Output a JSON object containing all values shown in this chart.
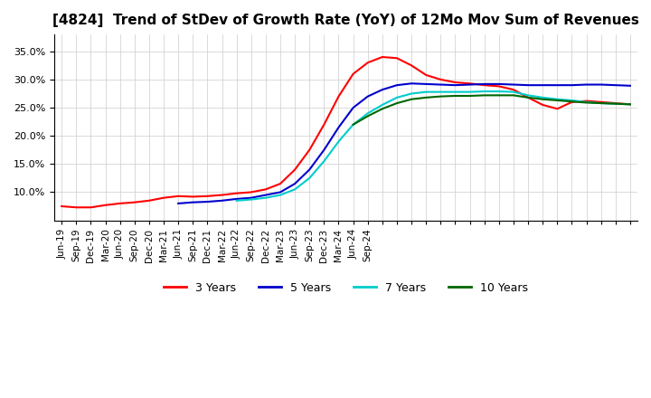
{
  "title": "[4824]  Trend of StDev of Growth Rate (YoY) of 12Mo Mov Sum of Revenues",
  "title_fontsize": 11,
  "ylim": [
    0.05,
    0.38
  ],
  "yticks": [
    0.1,
    0.15,
    0.2,
    0.25,
    0.3,
    0.35
  ],
  "background_color": "#ffffff",
  "grid_color": "#cccccc",
  "legend_labels": [
    "3 Years",
    "5 Years",
    "7 Years",
    "10 Years"
  ],
  "legend_colors": [
    "#ff0000",
    "#0000cc",
    "#00cccc",
    "#006600"
  ],
  "series": {
    "3yr": {
      "color": "#ff0000",
      "points": [
        [
          0,
          0.075
        ],
        [
          1,
          0.073
        ],
        [
          2,
          0.073
        ],
        [
          3,
          0.077
        ],
        [
          4,
          0.08
        ],
        [
          5,
          0.082
        ],
        [
          6,
          0.085
        ],
        [
          7,
          0.09
        ],
        [
          8,
          0.093
        ],
        [
          9,
          0.092
        ],
        [
          10,
          0.093
        ],
        [
          11,
          0.095
        ],
        [
          12,
          0.098
        ],
        [
          13,
          0.1
        ],
        [
          14,
          0.105
        ],
        [
          15,
          0.115
        ],
        [
          16,
          0.14
        ],
        [
          17,
          0.175
        ],
        [
          18,
          0.22
        ],
        [
          19,
          0.27
        ],
        [
          20,
          0.31
        ],
        [
          21,
          0.33
        ],
        [
          22,
          0.34
        ],
        [
          23,
          0.338
        ],
        [
          24,
          0.325
        ],
        [
          25,
          0.308
        ],
        [
          26,
          0.3
        ],
        [
          27,
          0.295
        ],
        [
          28,
          0.293
        ],
        [
          29,
          0.29
        ],
        [
          30,
          0.288
        ],
        [
          31,
          0.282
        ],
        [
          32,
          0.268
        ],
        [
          33,
          0.255
        ],
        [
          34,
          0.248
        ],
        [
          35,
          0.26
        ],
        [
          36,
          0.262
        ],
        [
          37,
          0.26
        ],
        [
          38,
          0.258
        ],
        [
          39,
          0.256
        ]
      ]
    },
    "5yr": {
      "color": "#0000cc",
      "points": [
        [
          8,
          0.08
        ],
        [
          9,
          0.082
        ],
        [
          10,
          0.083
        ],
        [
          11,
          0.085
        ],
        [
          12,
          0.088
        ],
        [
          13,
          0.09
        ],
        [
          14,
          0.095
        ],
        [
          15,
          0.1
        ],
        [
          16,
          0.115
        ],
        [
          17,
          0.14
        ],
        [
          18,
          0.175
        ],
        [
          19,
          0.215
        ],
        [
          20,
          0.25
        ],
        [
          21,
          0.27
        ],
        [
          22,
          0.282
        ],
        [
          23,
          0.29
        ],
        [
          24,
          0.293
        ],
        [
          25,
          0.292
        ],
        [
          26,
          0.291
        ],
        [
          27,
          0.29
        ],
        [
          28,
          0.291
        ],
        [
          29,
          0.292
        ],
        [
          30,
          0.292
        ],
        [
          31,
          0.291
        ],
        [
          32,
          0.29
        ],
        [
          33,
          0.29
        ],
        [
          34,
          0.29
        ],
        [
          35,
          0.29
        ],
        [
          36,
          0.291
        ],
        [
          37,
          0.291
        ],
        [
          38,
          0.29
        ],
        [
          39,
          0.289
        ]
      ]
    },
    "7yr": {
      "color": "#00cccc",
      "points": [
        [
          12,
          0.085
        ],
        [
          13,
          0.087
        ],
        [
          14,
          0.09
        ],
        [
          15,
          0.095
        ],
        [
          16,
          0.105
        ],
        [
          17,
          0.125
        ],
        [
          18,
          0.155
        ],
        [
          19,
          0.19
        ],
        [
          20,
          0.22
        ],
        [
          21,
          0.24
        ],
        [
          22,
          0.255
        ],
        [
          23,
          0.268
        ],
        [
          24,
          0.275
        ],
        [
          25,
          0.278
        ],
        [
          26,
          0.278
        ],
        [
          27,
          0.278
        ],
        [
          28,
          0.278
        ],
        [
          29,
          0.279
        ],
        [
          30,
          0.279
        ],
        [
          31,
          0.278
        ],
        [
          32,
          0.272
        ],
        [
          33,
          0.268
        ],
        [
          34,
          0.265
        ],
        [
          35,
          0.263
        ],
        [
          36,
          0.26
        ],
        [
          37,
          0.258
        ],
        [
          38,
          0.257
        ],
        [
          39,
          0.256
        ]
      ]
    },
    "10yr": {
      "color": "#006600",
      "points": [
        [
          20,
          0.22
        ],
        [
          21,
          0.235
        ],
        [
          22,
          0.248
        ],
        [
          23,
          0.258
        ],
        [
          24,
          0.265
        ],
        [
          25,
          0.268
        ],
        [
          26,
          0.27
        ],
        [
          27,
          0.271
        ],
        [
          28,
          0.271
        ],
        [
          29,
          0.272
        ],
        [
          30,
          0.272
        ],
        [
          31,
          0.272
        ],
        [
          32,
          0.268
        ],
        [
          33,
          0.265
        ],
        [
          34,
          0.263
        ],
        [
          35,
          0.261
        ],
        [
          36,
          0.259
        ],
        [
          37,
          0.258
        ],
        [
          38,
          0.257
        ],
        [
          39,
          0.256
        ]
      ]
    }
  },
  "x_tick_positions": [
    0,
    1,
    2,
    3,
    4,
    5,
    6,
    7,
    8,
    9,
    10,
    11,
    12,
    13,
    14,
    15,
    16,
    17,
    18,
    19,
    20,
    21,
    22,
    23,
    24,
    25,
    26,
    27,
    28,
    29,
    30,
    31,
    32,
    33,
    34,
    35,
    36,
    37,
    38,
    39
  ],
  "x_tick_labels": [
    "Jun-19",
    "Sep-19",
    "Dec-19",
    "Mar-20",
    "Jun-20",
    "Sep-20",
    "Dec-20",
    "Mar-21",
    "Jun-21",
    "Sep-21",
    "Dec-21",
    "Mar-22",
    "Jun-22",
    "Sep-22",
    "Dec-22",
    "Mar-23",
    "Jun-23",
    "Sep-23",
    "Dec-23",
    "Mar-24",
    "Jun-24",
    "Sep-24",
    "",
    "",
    "",
    "",
    "",
    "",
    "",
    "",
    "",
    "",
    "",
    "",
    "",
    "",
    "",
    "",
    "",
    ""
  ],
  "x_tick_labels_full": [
    "Jun-19",
    "Sep-19",
    "Dec-19",
    "Mar-20",
    "Jun-20",
    "Sep-20",
    "Dec-20",
    "Mar-21",
    "Jun-21",
    "Sep-21",
    "Dec-21",
    "Mar-22",
    "Jun-22",
    "Sep-22",
    "Dec-22",
    "Mar-23",
    "Jun-23",
    "Sep-23",
    "Dec-23",
    "Mar-24",
    "Jun-24",
    "Sep-24"
  ]
}
